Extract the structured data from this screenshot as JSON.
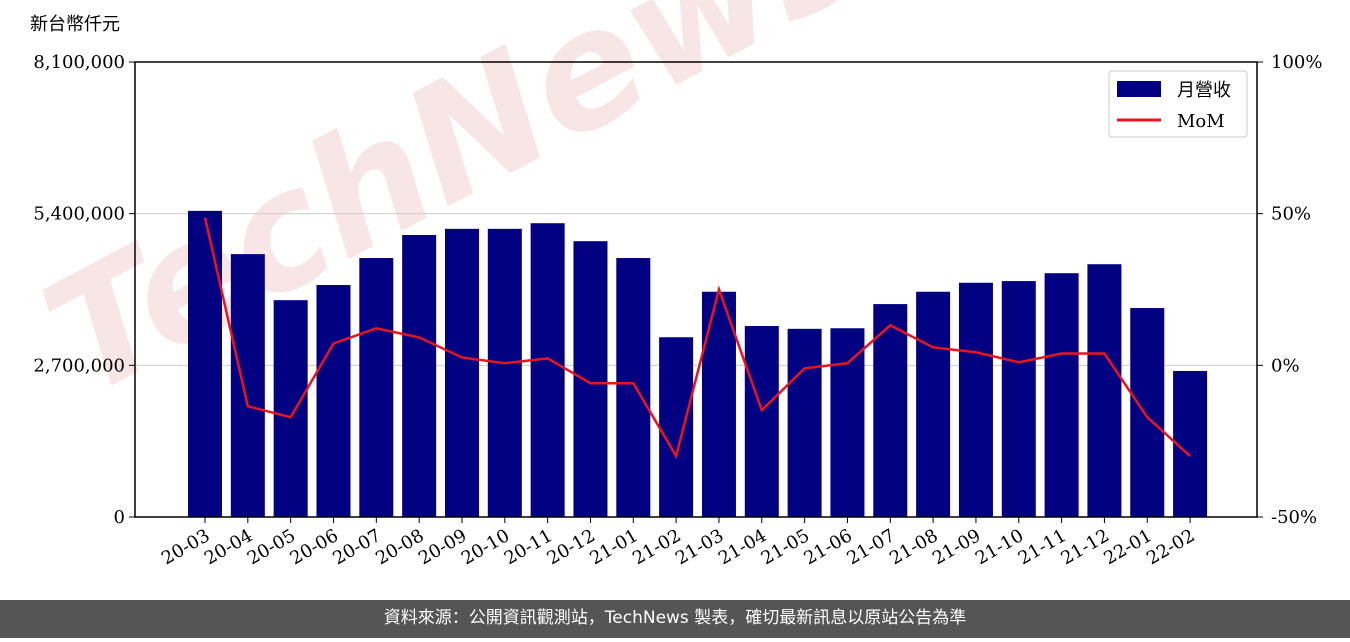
{
  "chart_data": {
    "type": "bar",
    "y_axis_label": "新台幣仟元",
    "watermark": "TechNews",
    "footer": "資料來源：公開資訊觀測站，TechNews 製表，確切最新訊息以原站公告為準",
    "categories": [
      "20-03",
      "20-04",
      "20-05",
      "20-06",
      "20-07",
      "20-08",
      "20-09",
      "20-10",
      "20-11",
      "20-12",
      "21-01",
      "21-02",
      "21-03",
      "21-04",
      "21-05",
      "21-06",
      "21-07",
      "21-08",
      "21-09",
      "21-10",
      "21-11",
      "21-12",
      "22-01",
      "22-02"
    ],
    "series": [
      {
        "name": "月營收",
        "type": "bar",
        "color": "#000080",
        "values": [
          5450000,
          4680000,
          3860000,
          4130000,
          4610000,
          5020000,
          5130000,
          5130000,
          5230000,
          4910000,
          4610000,
          3200000,
          4010000,
          3400000,
          3350000,
          3360000,
          3790000,
          4010000,
          4170000,
          4200000,
          4340000,
          4500000,
          3720000,
          2600000
        ]
      },
      {
        "name": "MoM",
        "type": "line",
        "axis": "y2",
        "color": "#e8141e",
        "values": [
          48.7,
          -13.5,
          -17.1,
          7.2,
          12.2,
          9.2,
          2.6,
          0.7,
          2.3,
          -5.9,
          -5.9,
          -29.9,
          25,
          -14.8,
          -1,
          0.7,
          13.2,
          5.9,
          4.3,
          1,
          3.9,
          3.9,
          -17.1,
          -29.9
        ]
      }
    ],
    "ylim": [
      0,
      8100000
    ],
    "yticks": [
      {
        "value": 0,
        "label": "0"
      },
      {
        "value": 2700000,
        "label": "2,700,000"
      },
      {
        "value": 5400000,
        "label": "5,400,000"
      },
      {
        "value": 8100000,
        "label": "8,100,000"
      }
    ],
    "y2lim": [
      -50,
      100
    ],
    "y2ticks": [
      {
        "value": -50,
        "label": "-50%"
      },
      {
        "value": 0,
        "label": "0%"
      },
      {
        "value": 50,
        "label": "50%"
      },
      {
        "value": 100,
        "label": "100%"
      }
    ],
    "grid": true,
    "legend": "upper right"
  }
}
